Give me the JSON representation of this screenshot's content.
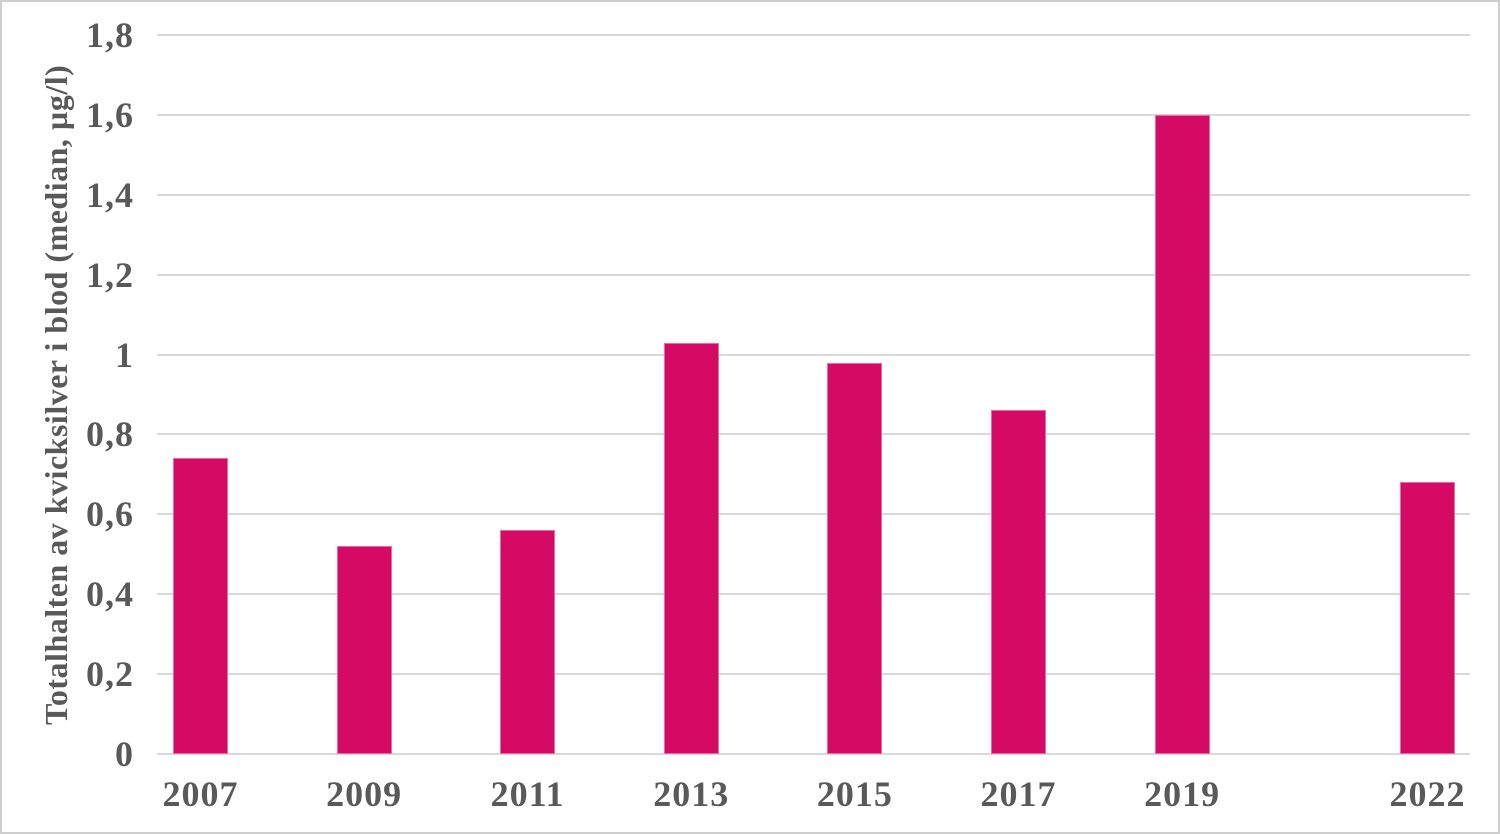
{
  "chart_data": {
    "type": "bar",
    "title": "",
    "xlabel": "",
    "ylabel": "Totalhalten av kvicksilver i blod (median, µg/l)",
    "categories": [
      "2007",
      "2009",
      "2011",
      "2013",
      "2015",
      "2017",
      "2019",
      "2022"
    ],
    "x_years": [
      2007,
      2009,
      2011,
      2013,
      2015,
      2017,
      2019,
      2022
    ],
    "values": [
      0.74,
      0.52,
      0.56,
      1.03,
      0.98,
      0.86,
      1.6,
      0.68
    ],
    "ylim": [
      0,
      1.8
    ],
    "ytick_step": 0.2,
    "ytick_labels": [
      "0",
      "0,2",
      "0,4",
      "0,6",
      "0,8",
      "1",
      "1,2",
      "1,4",
      "1,6",
      "1,8"
    ],
    "grid": "horizontal-only",
    "legend": "none",
    "colors": {
      "bar": "#D50A64",
      "gridline": "#D9D9D9",
      "text": "#595959",
      "frame_border": "#CFCFCF",
      "background": "#FFFFFF"
    }
  }
}
